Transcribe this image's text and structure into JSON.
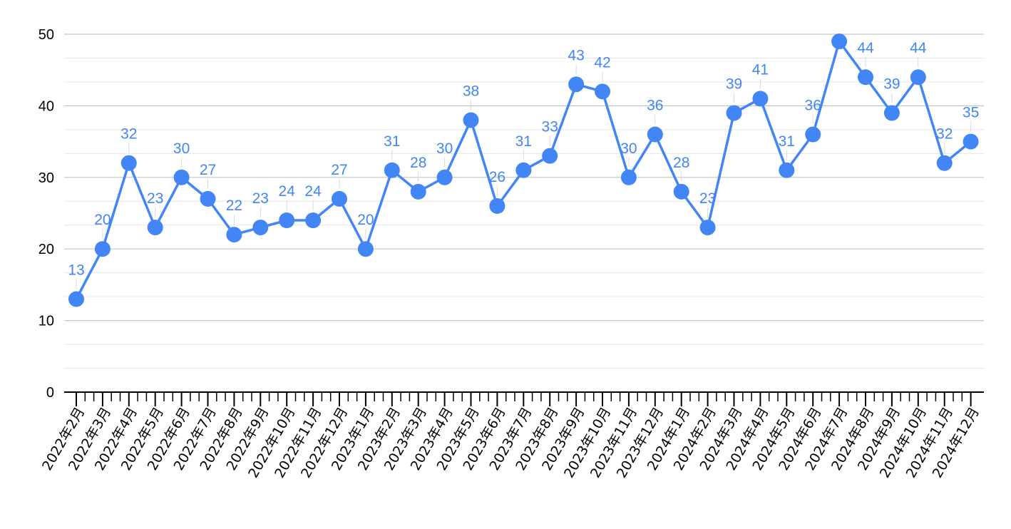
{
  "chart_data": {
    "type": "line",
    "title": "",
    "xlabel": "",
    "ylabel": "",
    "ylim": [
      0,
      50
    ],
    "yticks": [
      "0",
      "10",
      "20",
      "30",
      "40",
      "50"
    ],
    "grid": true,
    "legend": "none",
    "colors": {
      "series": "#4285f4",
      "major_grid": "#c6c6c6",
      "minor_grid": "#e6e6e6",
      "axis": "#000000"
    },
    "categories": [
      "2022年2月",
      "2022年3月",
      "2022年4月",
      "2022年5月",
      "2022年6月",
      "2022年7月",
      "2022年8月",
      "2022年9月",
      "2022年10月",
      "2022年11月",
      "2022年12月",
      "2023年1月",
      "2023年2月",
      "2023年3月",
      "2023年4月",
      "2023年5月",
      "2023年6月",
      "2023年7月",
      "2023年8月",
      "2023年9月",
      "2023年10月",
      "2023年11月",
      "2023年12月",
      "2024年1月",
      "2024年2月",
      "2024年3月",
      "2024年4月",
      "2024年5月",
      "2024年6月",
      "2024年7月",
      "2024年8月",
      "2024年9月",
      "2024年10月",
      "2024年11月",
      "2024年12月"
    ],
    "series": [
      {
        "values": [
          13,
          20,
          32,
          23,
          30,
          27,
          22,
          23,
          24,
          24,
          27,
          20,
          31,
          28,
          30,
          38,
          26,
          31,
          33,
          43,
          42,
          30,
          36,
          28,
          23,
          39,
          41,
          31,
          36,
          49,
          44,
          39,
          44,
          32,
          35
        ],
        "data_labels": [
          "13",
          "20",
          "32",
          "23",
          "30",
          "27",
          "22",
          "23",
          "24",
          "24",
          "27",
          "20",
          "31",
          "28",
          "30",
          "38",
          "26",
          "31",
          "33",
          "43",
          "42",
          "30",
          "36",
          "28",
          "23",
          "39",
          "41",
          "31",
          "36",
          "",
          "44",
          "39",
          "44",
          "32",
          "35"
        ]
      }
    ]
  }
}
